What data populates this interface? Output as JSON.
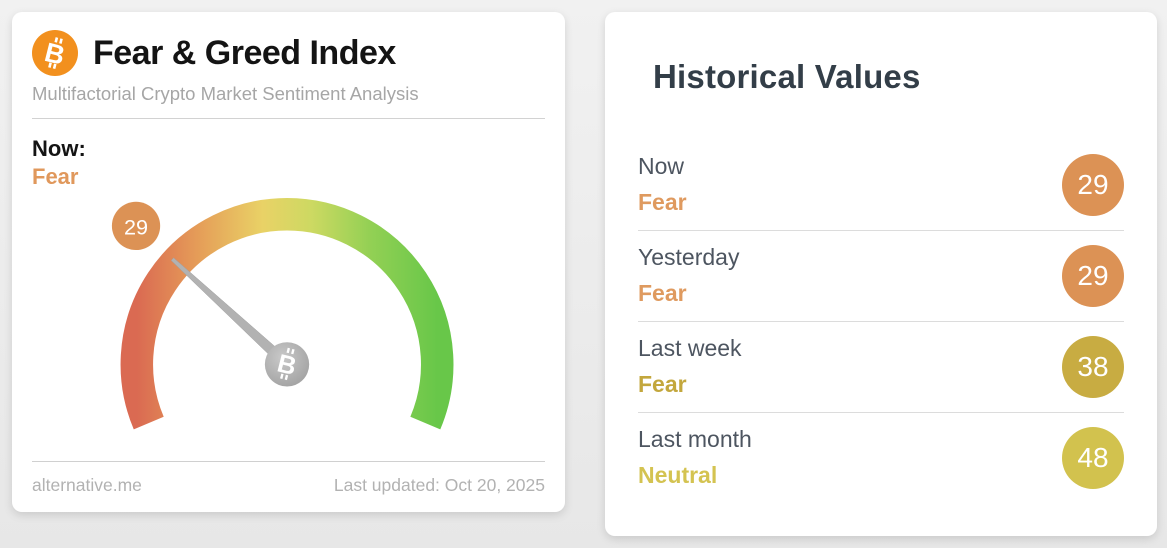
{
  "gauge_card": {
    "title": "Fear & Greed Index",
    "subtitle": "Multifactorial Crypto Market Sentiment Analysis",
    "now_label": "Now:",
    "now_sentiment": "Fear",
    "now_sentiment_color": "#e0985c",
    "footer_left": "alternative.me",
    "footer_right": "Last updated: Oct 20, 2025"
  },
  "chart_data": {
    "type": "gauge",
    "title": "Fear & Greed Index",
    "value": 29,
    "value_label": "Fear",
    "min": 0,
    "max": 100,
    "arc_sweep_degrees": 226,
    "badge_color": "#dc9255",
    "needle_color": "#b2b2b2",
    "arc_colors": [
      "#da6a52",
      "#e59c58",
      "#e9d266",
      "#cdd962",
      "#92d054",
      "#68c749"
    ],
    "bitcoin_orange": "#f2901e"
  },
  "historical": {
    "title": "Historical Values",
    "rows": [
      {
        "label": "Now",
        "sentiment": "Fear",
        "value": "29",
        "badge_color": "#dc9255",
        "sentiment_color": "#df9a5f"
      },
      {
        "label": "Yesterday",
        "sentiment": "Fear",
        "value": "29",
        "badge_color": "#dc9255",
        "sentiment_color": "#df9a5f"
      },
      {
        "label": "Last week",
        "sentiment": "Fear",
        "value": "38",
        "badge_color": "#c8ac42",
        "sentiment_color": "#c3a73d"
      },
      {
        "label": "Last month",
        "sentiment": "Neutral",
        "value": "48",
        "badge_color": "#d2c24e",
        "sentiment_color": "#d4c351"
      }
    ]
  }
}
